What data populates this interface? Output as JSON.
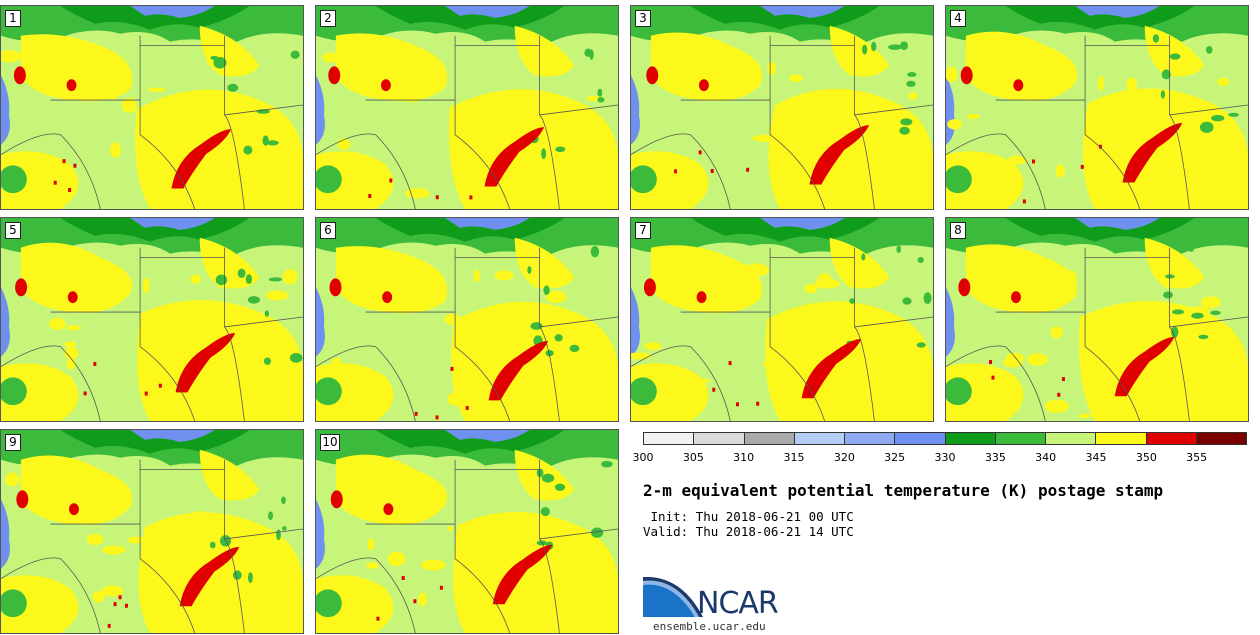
{
  "panels": [
    {
      "label": "1"
    },
    {
      "label": "2"
    },
    {
      "label": "3"
    },
    {
      "label": "4"
    },
    {
      "label": "5"
    },
    {
      "label": "6"
    },
    {
      "label": "7"
    },
    {
      "label": "8"
    },
    {
      "label": "9"
    },
    {
      "label": "10"
    }
  ],
  "colorbar": {
    "ticks": [
      "300",
      "305",
      "310",
      "315",
      "320",
      "325",
      "330",
      "335",
      "340",
      "345",
      "350",
      "355"
    ],
    "colors": [
      "#f2f2f2",
      "#dadada",
      "#aaaaaa",
      "#b3cdf5",
      "#8eaaf3",
      "#7090f0",
      "#0e9c1a",
      "#3cba3c",
      "#c6f57a",
      "#fdf81c",
      "#e00000",
      "#7a0000"
    ]
  },
  "title": "2-m equivalent potential temperature (K) postage stamp",
  "init_line": " Init: Thu 2018-06-21 00 UTC",
  "valid_line": "Valid: Thu 2018-06-21 14 UTC",
  "logo": {
    "text": "NCAR",
    "url": "ensemble.ucar.edu"
  }
}
